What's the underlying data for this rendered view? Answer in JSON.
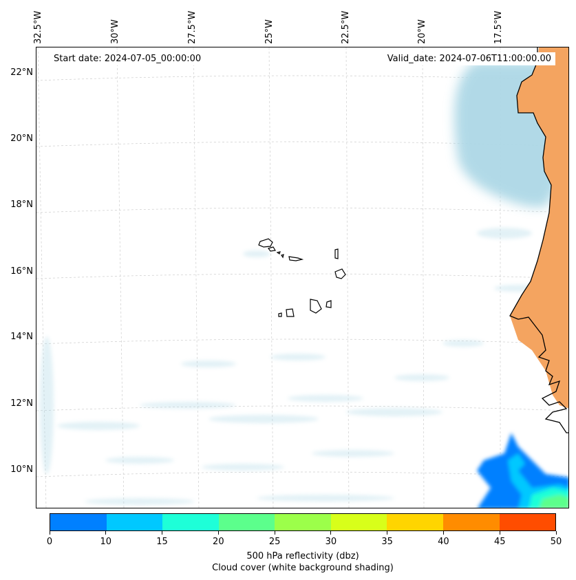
{
  "map": {
    "header": {
      "start_date": "Start date: 2024-07-05_00:00:00",
      "valid_date": "Valid_date: 2024-07-06T11:00:00.00"
    },
    "longitude_labels": [
      "32.5°W",
      "30°W",
      "27.5°W",
      "25°W",
      "22.5°W",
      "20°W",
      "17.5°W"
    ],
    "latitude_labels": [
      "22°N",
      "20°N",
      "18°N",
      "16°N",
      "14°N",
      "12°N",
      "10°N"
    ],
    "layers": {
      "cloud_cover_color": "#add8e6",
      "land_shading_color": "#f4a460",
      "coastline_color": "#000000",
      "gridline_color": "#cccccc"
    }
  },
  "colorbar": {
    "ticks": [
      "0",
      "10",
      "15",
      "20",
      "25",
      "30",
      "35",
      "40",
      "45",
      "50"
    ],
    "colors": [
      "#0080ff",
      "#00c8ff",
      "#1effd8",
      "#5cff8c",
      "#9cff4a",
      "#d8ff1a",
      "#ffd500",
      "#ff8c00",
      "#ff4d00"
    ],
    "label_line1": "500 hPa reflectivity (dbz)",
    "label_line2": "Cloud cover (white background shading)"
  }
}
